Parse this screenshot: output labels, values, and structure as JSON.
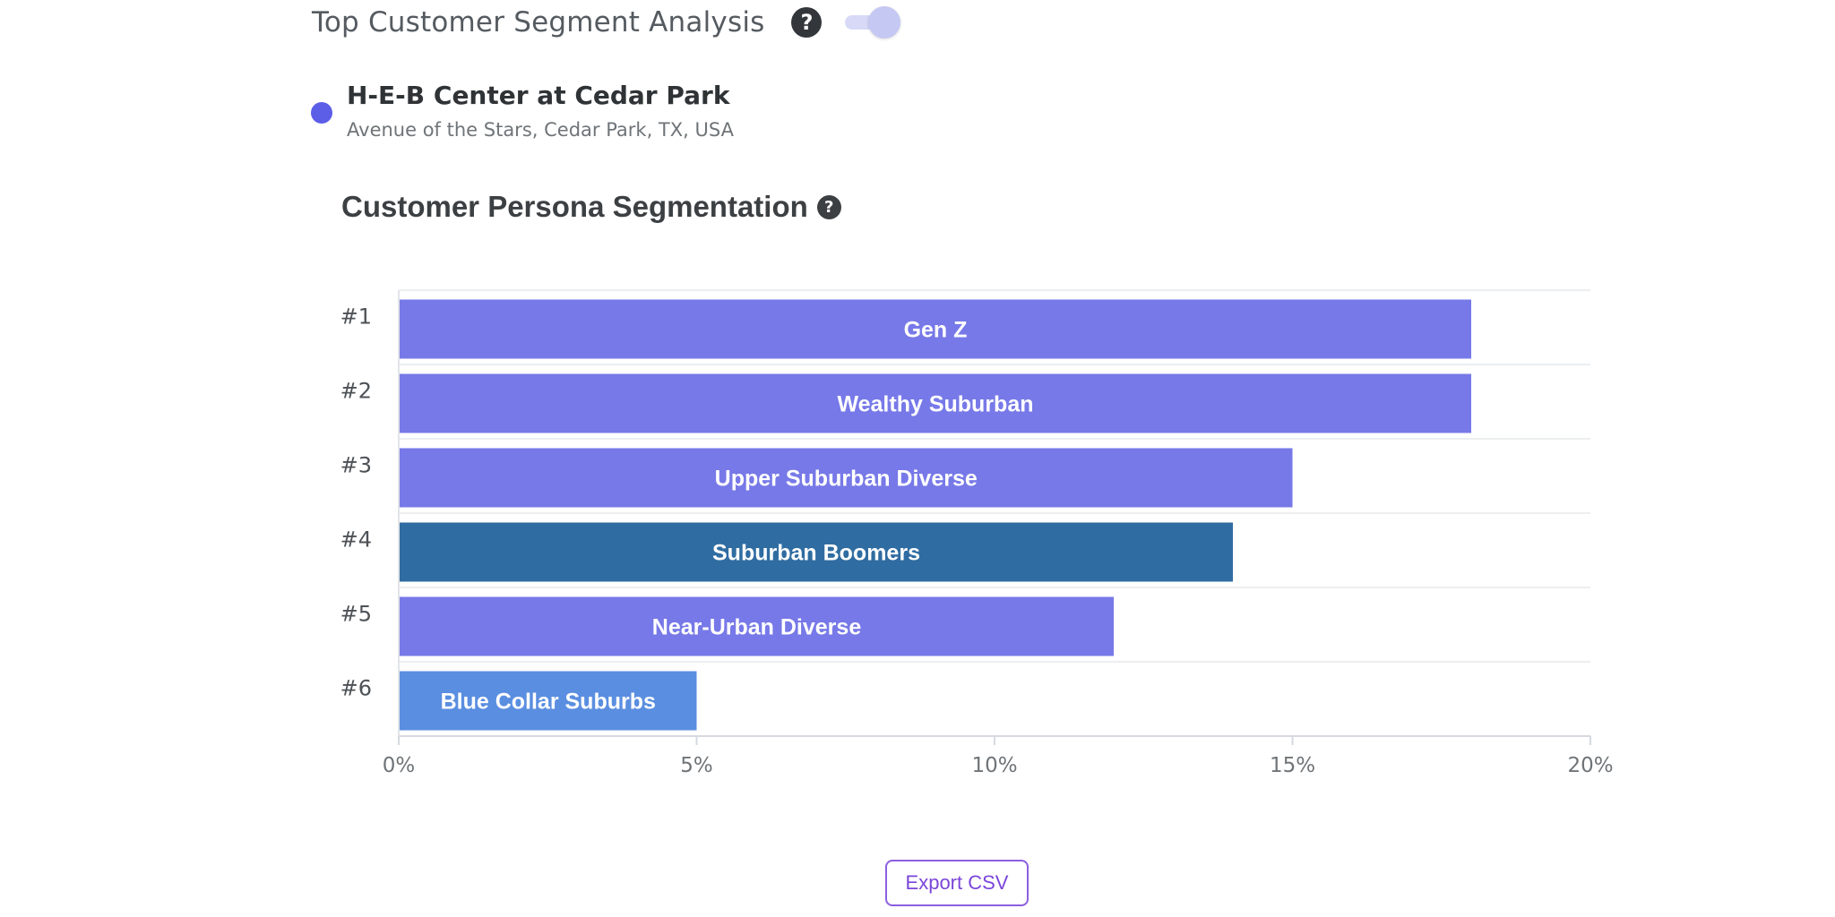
{
  "header": {
    "title": "Top Customer Segment Analysis",
    "help_icon": "question-circle-icon",
    "help_glyph": "?",
    "toggle_on": true
  },
  "location": {
    "name": "H-E-B Center at Cedar Park",
    "address": "Avenue of the Stars, Cedar Park, TX, USA",
    "dot_color": "#5c5ee7"
  },
  "chart_title": "Customer Persona Segmentation",
  "chart_help_glyph": "?",
  "chart_data": {
    "type": "bar",
    "orientation": "horizontal",
    "title": "Customer Persona Segmentation",
    "categories": [
      "#1",
      "#2",
      "#3",
      "#4",
      "#5",
      "#6"
    ],
    "bar_labels": [
      "Gen Z",
      "Wealthy Suburban",
      "Upper Suburban Diverse",
      "Suburban Boomers",
      "Near-Urban Diverse",
      "Blue Collar Suburbs"
    ],
    "values": [
      18,
      18,
      15,
      14,
      12,
      5
    ],
    "colors": [
      "#7779e8",
      "#7779e8",
      "#7779e8",
      "#2f6ca1",
      "#7779e8",
      "#5a8ee0"
    ],
    "xlim": [
      0,
      20
    ],
    "x_ticks": [
      "0%",
      "5%",
      "10%",
      "15%",
      "20%"
    ],
    "grid": true
  },
  "export_button": {
    "label": "Export CSV"
  },
  "colors": {
    "accent": "#7779e8",
    "export_border": "#8c5fe0"
  }
}
